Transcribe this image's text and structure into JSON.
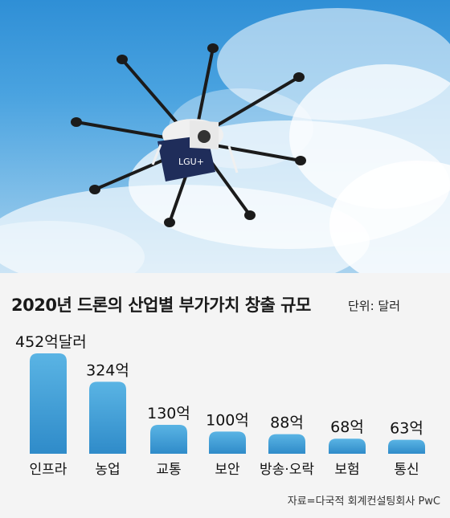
{
  "photo": {
    "box_brand": "LGU+"
  },
  "chart_data": {
    "type": "bar",
    "title": "2020년 드론의 산업별 부가가치 창출 규모",
    "unit_note": "단위: 달러",
    "categories": [
      "인프라",
      "농업",
      "교통",
      "보안",
      "방송·오락",
      "보험",
      "통신"
    ],
    "values": [
      452,
      324,
      130,
      100,
      88,
      68,
      63
    ],
    "value_labels": [
      "452억달러",
      "324억",
      "130억",
      "100억",
      "88억",
      "68억",
      "63억"
    ],
    "ylim": [
      0,
      452
    ],
    "grid": false,
    "source": "자료=다국적 회계컨설팅회사 PwC",
    "colors": {
      "bar_top": "#5ab4e4",
      "bar_bottom": "#2f8bc9",
      "panel_bg": "#f4f4f4"
    }
  }
}
